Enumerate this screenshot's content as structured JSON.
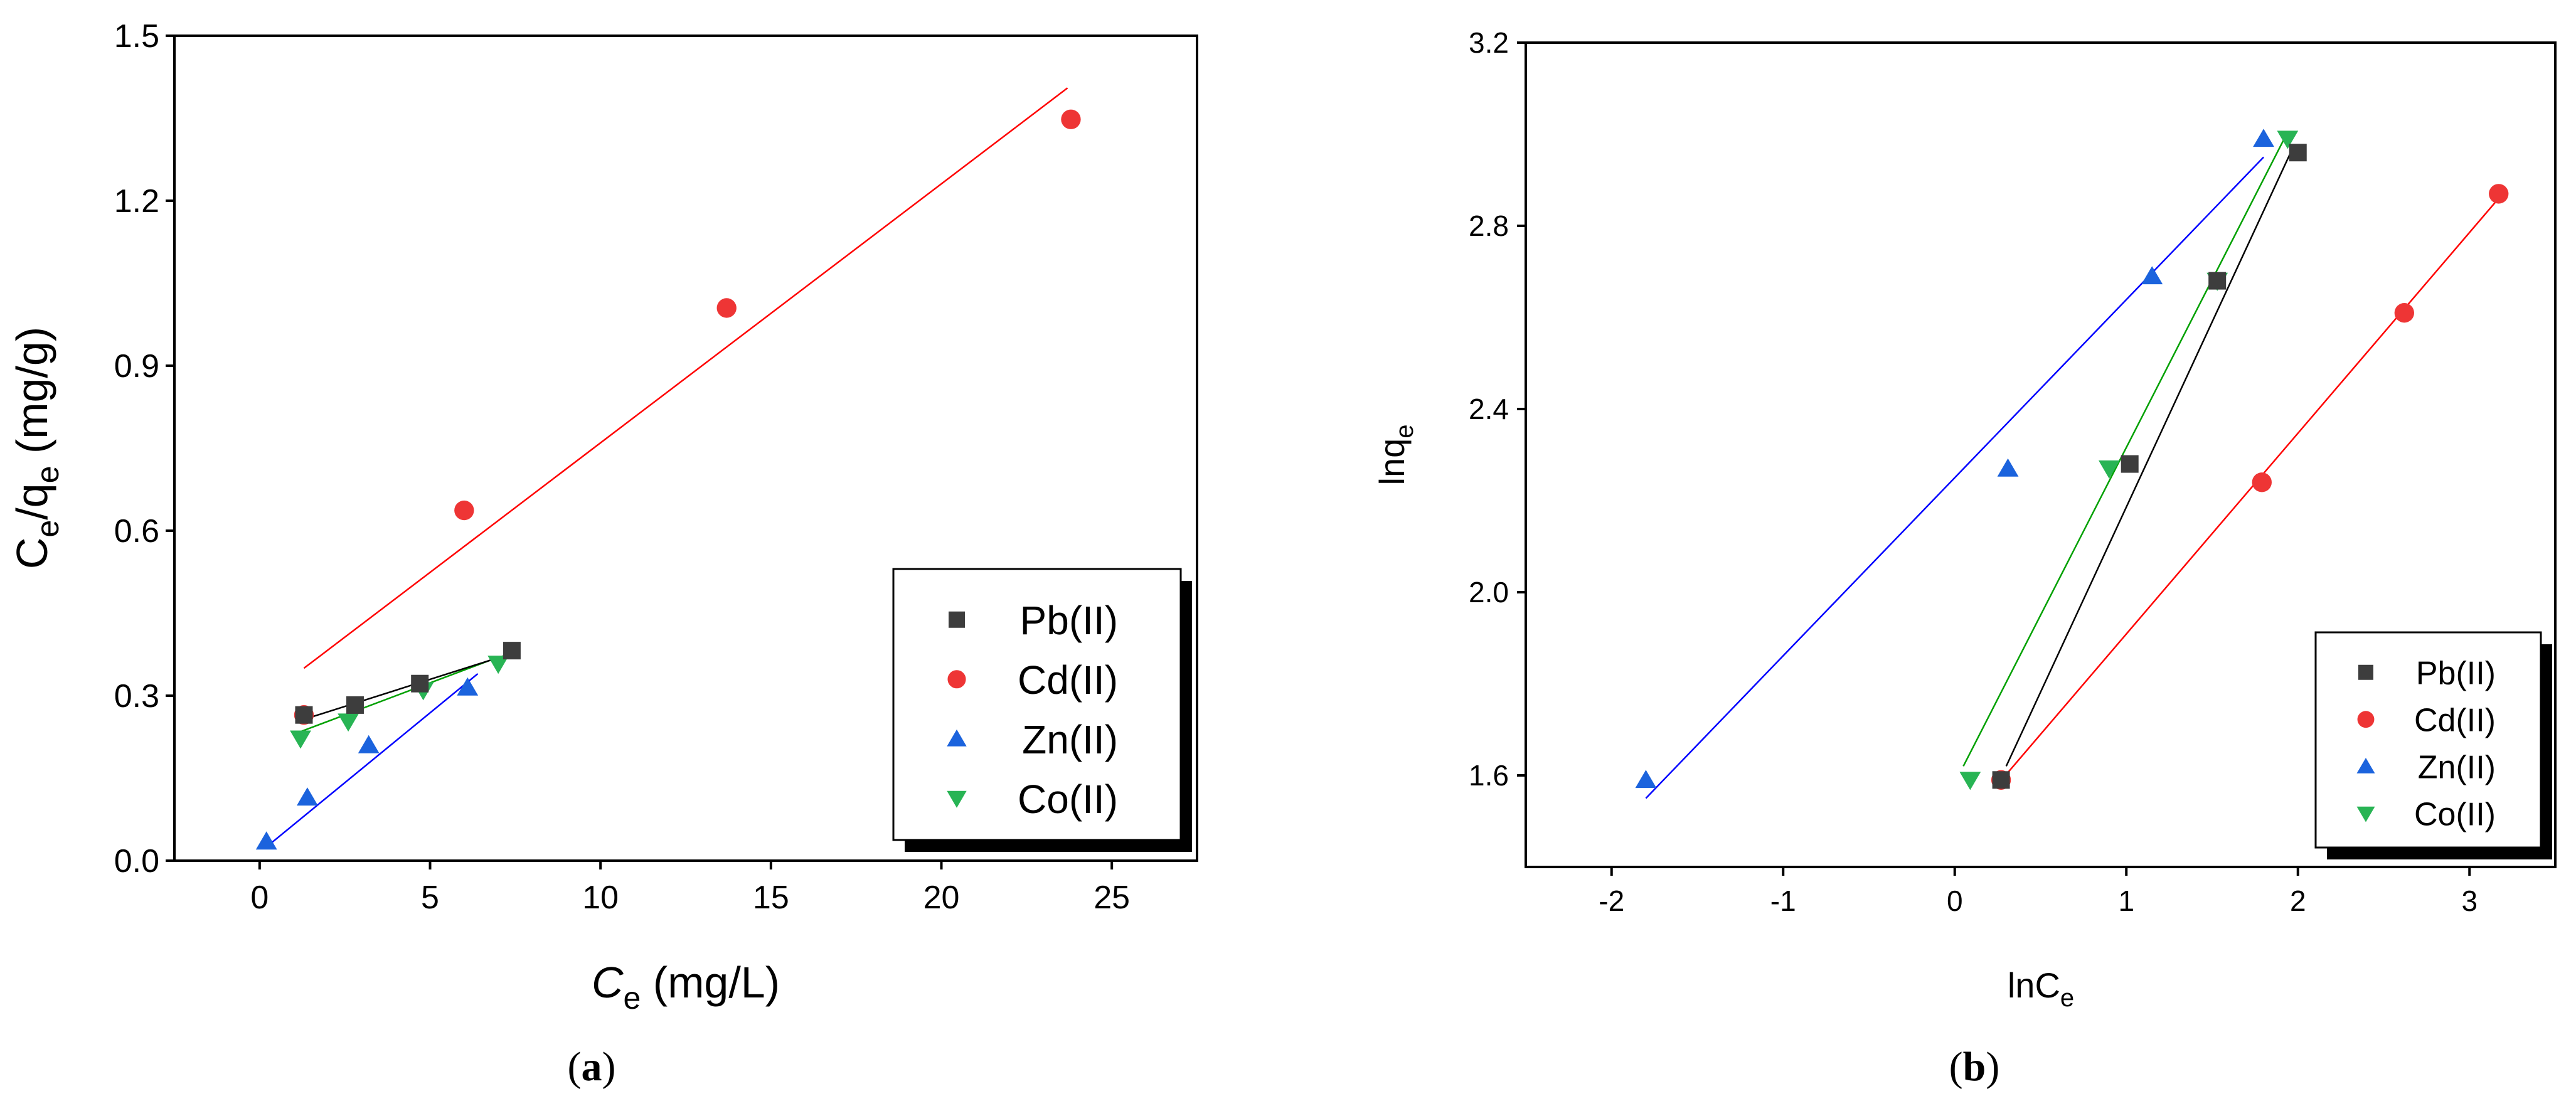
{
  "figure": {
    "panel_a_caption": {
      "open": "(",
      "letter": "a",
      "close": ")"
    },
    "panel_b_caption": {
      "open": "(",
      "letter": "b",
      "close": ")"
    }
  },
  "colors": {
    "Pb(II)": "#3d3d3d",
    "Cd(II)": "#ee3535",
    "Zn(II)": "#1b63dd",
    "Co(II)": "#28b454",
    "Pb_fit": "#000000",
    "Cd_fit": "#ff0000",
    "Zn_fit": "#0000ff",
    "Co_fit": "#00a000"
  },
  "chart_data": [
    {
      "type": "scatter",
      "panel": "a",
      "xlabel": {
        "main": "C",
        "sub": "e",
        "rest": " (mg/L)"
      },
      "ylabel": {
        "main": "C",
        "sub": "e",
        "rest": "/q",
        "sub2": "e",
        "rest2": " (mg/g)"
      },
      "xlim": [
        -2.5,
        27.5
      ],
      "ylim": [
        0,
        1.5
      ],
      "xticks": [
        0,
        5,
        10,
        15,
        20,
        25
      ],
      "yticks": [
        0.0,
        0.3,
        0.6,
        0.9,
        1.2,
        1.5
      ],
      "ytick_labels": [
        "0.0",
        "0.3",
        "0.6",
        "0.9",
        "1.2",
        "1.5"
      ],
      "legend": {
        "position": "bottom-right",
        "entries": [
          "Pb(II)",
          "Cd(II)",
          "Zn(II)",
          "Co(II)"
        ]
      },
      "grid": false,
      "series": [
        {
          "name": "Pb(II)",
          "marker": "square",
          "x": [
            1.3,
            2.8,
            4.7,
            7.4
          ],
          "y": [
            0.265,
            0.283,
            0.322,
            0.382
          ],
          "fit": [
            [
              1.2,
              0.255
            ],
            [
              7.3,
              0.375
            ]
          ]
        },
        {
          "name": "Cd(II)",
          "marker": "circle",
          "x": [
            1.3,
            6.0,
            13.7,
            23.8
          ],
          "y": [
            0.265,
            0.637,
            1.005,
            1.348
          ],
          "fit": [
            [
              1.3,
              0.35
            ],
            [
              23.7,
              1.405
            ]
          ]
        },
        {
          "name": "Zn(II)",
          "marker": "triangle-up",
          "x": [
            0.2,
            1.4,
            3.2,
            6.1
          ],
          "y": [
            0.035,
            0.115,
            0.21,
            0.315
          ],
          "fit": [
            [
              0.2,
              0.025
            ],
            [
              6.4,
              0.34
            ]
          ]
        },
        {
          "name": "Co(II)",
          "marker": "triangle-down",
          "x": [
            1.2,
            2.6,
            4.8,
            7.0
          ],
          "y": [
            0.222,
            0.253,
            0.31,
            0.358
          ],
          "fit": [
            [
              1.0,
              0.23
            ],
            [
              7.0,
              0.37
            ]
          ]
        }
      ]
    },
    {
      "type": "scatter",
      "panel": "b",
      "xlabel": {
        "main": "lnC",
        "sub": "e"
      },
      "ylabel": {
        "main": "lnq",
        "sub": "e"
      },
      "xlim": [
        -2.5,
        3.5
      ],
      "ylim": [
        1.4,
        3.2
      ],
      "xticks": [
        -2,
        -1,
        0,
        1,
        2,
        3
      ],
      "yticks": [
        1.6,
        2.0,
        2.4,
        2.8,
        3.2
      ],
      "ytick_labels": [
        "1.6",
        "2.0",
        "2.4",
        "2.8",
        "3.2"
      ],
      "legend": {
        "position": "bottom-right",
        "entries": [
          "Pb(II)",
          "Cd(II)",
          "Zn(II)",
          "Co(II)"
        ]
      },
      "grid": false,
      "series": [
        {
          "name": "Pb(II)",
          "marker": "square",
          "x": [
            0.27,
            1.02,
            1.53,
            2.0
          ],
          "y": [
            1.59,
            2.28,
            2.68,
            2.96
          ],
          "fit": [
            [
              0.3,
              1.62
            ],
            [
              1.97,
              2.97
            ]
          ]
        },
        {
          "name": "Cd(II)",
          "marker": "circle",
          "x": [
            0.27,
            1.79,
            2.62,
            3.17
          ],
          "y": [
            1.59,
            2.24,
            2.61,
            2.87
          ],
          "fit": [
            [
              0.25,
              1.58
            ],
            [
              3.17,
              2.86
            ]
          ]
        },
        {
          "name": "Zn(II)",
          "marker": "triangle-up",
          "x": [
            -1.8,
            0.31,
            1.15,
            1.8
          ],
          "y": [
            1.59,
            2.27,
            2.69,
            2.99
          ],
          "fit": [
            [
              -1.8,
              1.55
            ],
            [
              1.8,
              2.95
            ]
          ]
        },
        {
          "name": "Co(II)",
          "marker": "triangle-down",
          "x": [
            0.09,
            0.9,
            1.53,
            1.94
          ],
          "y": [
            1.59,
            2.27,
            2.68,
            2.99
          ],
          "fit": [
            [
              0.05,
              1.62
            ],
            [
              1.92,
              2.99
            ]
          ]
        }
      ]
    }
  ]
}
